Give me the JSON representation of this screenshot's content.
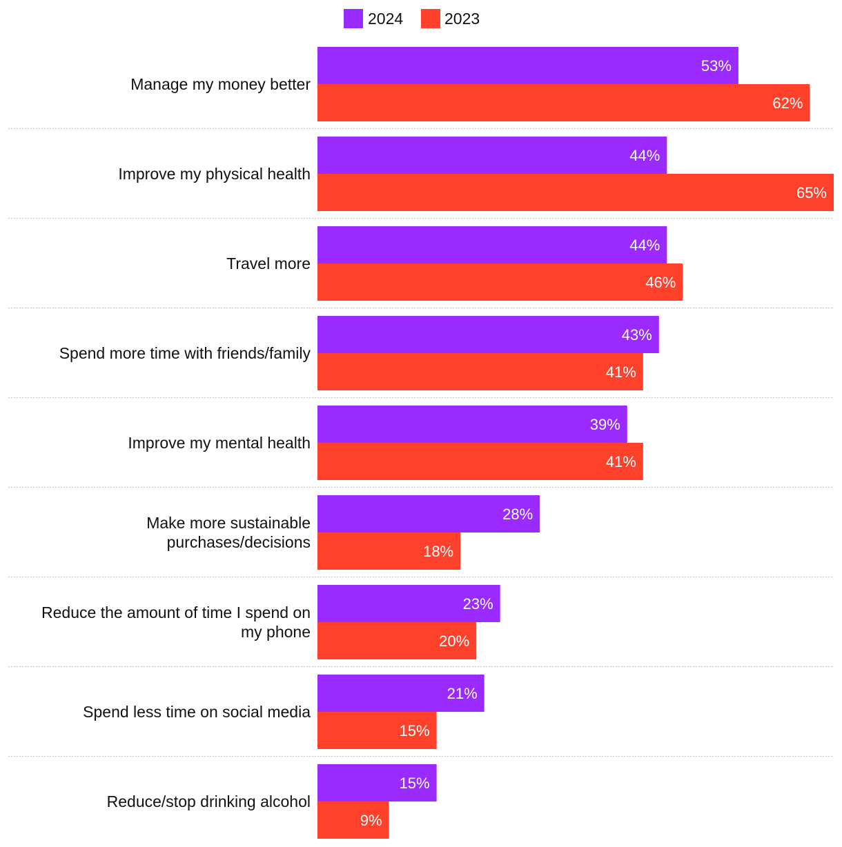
{
  "chart_data": {
    "type": "bar",
    "orientation": "horizontal",
    "legend_position": "top-center",
    "value_suffix": "%",
    "xlim": [
      0,
      65
    ],
    "categories": [
      [
        "Manage my money better"
      ],
      [
        "Improve my physical health"
      ],
      [
        "Travel more"
      ],
      [
        "Spend more time with friends/family"
      ],
      [
        "Improve my mental health"
      ],
      [
        "Make more sustainable",
        "purchases/decisions"
      ],
      [
        "Reduce the amount of time I spend on",
        "my phone"
      ],
      [
        "Spend less time on social media"
      ],
      [
        "Reduce/stop drinking alcohol"
      ]
    ],
    "series": [
      {
        "name": "2024",
        "color": "#9b2afe",
        "values": [
          53,
          44,
          44,
          43,
          39,
          28,
          23,
          21,
          15
        ]
      },
      {
        "name": "2023",
        "color": "#ff412c",
        "values": [
          62,
          65,
          46,
          41,
          41,
          18,
          20,
          15,
          9
        ]
      }
    ]
  }
}
